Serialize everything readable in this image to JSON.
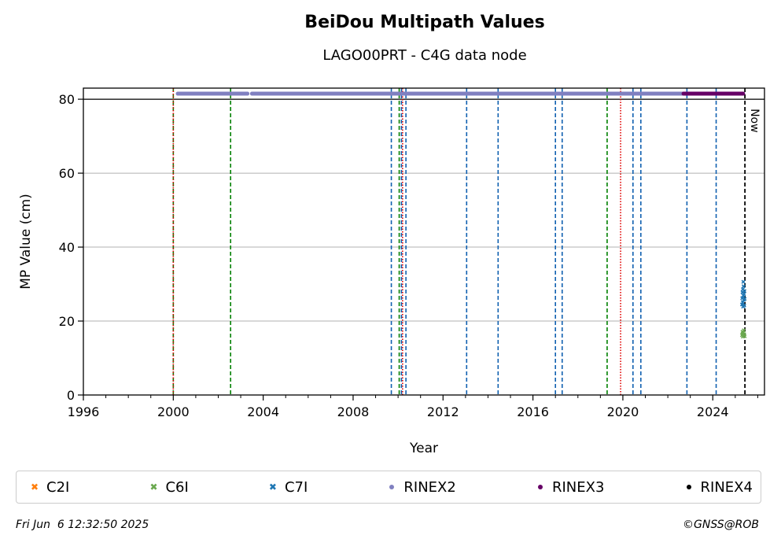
{
  "chart_data": {
    "type": "scatter",
    "title": "BeiDou Multipath Values",
    "subtitle": "LAGO00PRT - C4G data node",
    "xlabel": "Year",
    "ylabel": "MP Value (cm)",
    "xlim": [
      1996,
      2026.3
    ],
    "ylim": [
      0,
      83
    ],
    "x_ticks": [
      1996,
      2000,
      2004,
      2008,
      2012,
      2016,
      2020,
      2024
    ],
    "y_ticks": [
      0,
      20,
      40,
      60,
      80
    ],
    "grid": "y",
    "reference_line_y": 80,
    "now_label": "Now",
    "now_x": 2025.43,
    "vertical_lines": {
      "red": [
        2000.0,
        2010.2,
        2019.9
      ],
      "green": [
        2000.0,
        2002.55,
        2010.05,
        2019.3
      ],
      "blue": [
        2009.7,
        2010.15,
        2010.35,
        2013.05,
        2014.45,
        2017.0,
        2017.3,
        2020.45,
        2020.8,
        2022.85,
        2024.15
      ]
    },
    "series": [
      {
        "name": "C2I",
        "marker": "x",
        "color": "#ff7f0e",
        "points": []
      },
      {
        "name": "C6I",
        "marker": "x",
        "color": "#6aa84f",
        "points": [
          [
            2025.3,
            16.2
          ],
          [
            2025.32,
            17.1
          ],
          [
            2025.34,
            15.8
          ],
          [
            2025.36,
            16.9
          ],
          [
            2025.38,
            17.5
          ],
          [
            2025.4,
            16.4
          ],
          [
            2025.42,
            15.9
          ],
          [
            2025.33,
            16.6
          ]
        ]
      },
      {
        "name": "C7I",
        "marker": "x",
        "color": "#1f77b4",
        "points": [
          [
            2025.3,
            24.5
          ],
          [
            2025.31,
            26.2
          ],
          [
            2025.32,
            27.8
          ],
          [
            2025.33,
            25.1
          ],
          [
            2025.34,
            28.6
          ],
          [
            2025.35,
            23.9
          ],
          [
            2025.36,
            26.9
          ],
          [
            2025.37,
            29.4
          ],
          [
            2025.38,
            25.7
          ],
          [
            2025.39,
            27.3
          ],
          [
            2025.4,
            24.2
          ],
          [
            2025.41,
            28.1
          ],
          [
            2025.36,
            30.6
          ],
          [
            2025.42,
            26.0
          ]
        ]
      },
      {
        "name": "RINEX2",
        "marker": "o",
        "color": "#8080c0",
        "segments": [
          [
            2000.2,
            2003.3
          ],
          [
            2003.5,
            2022.7
          ]
        ],
        "y": 81.5
      },
      {
        "name": "RINEX3",
        "marker": "o",
        "color": "#660066",
        "segments": [
          [
            2022.7,
            2025.35
          ]
        ],
        "y": 81.5
      },
      {
        "name": "RINEX4",
        "marker": "o",
        "color": "#000000",
        "points": []
      }
    ]
  },
  "footer": {
    "timestamp": "Fri Jun  6 12:32:50 2025",
    "credit": "©GNSS@ROB"
  }
}
